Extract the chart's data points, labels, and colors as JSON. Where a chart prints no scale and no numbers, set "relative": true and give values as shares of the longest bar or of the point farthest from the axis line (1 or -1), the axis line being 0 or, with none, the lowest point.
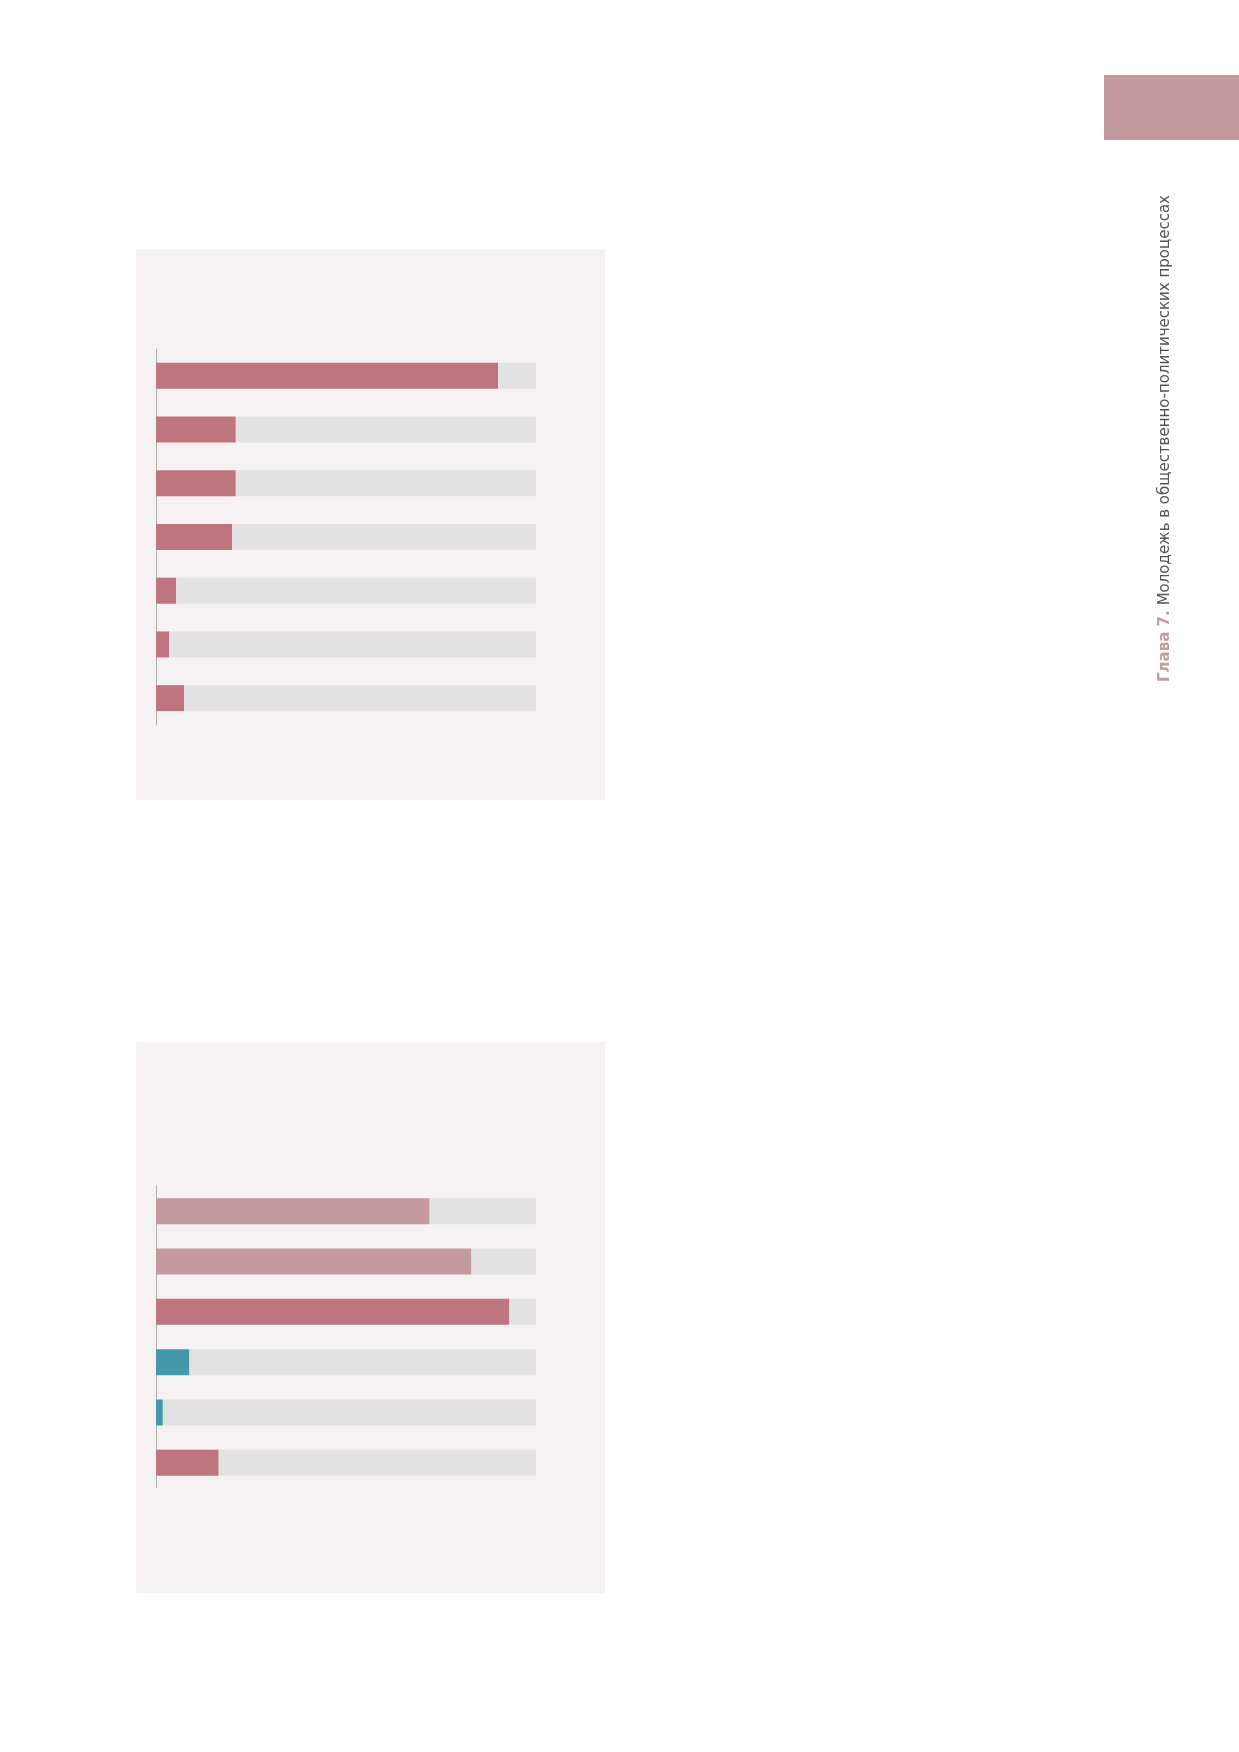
{
  "chart_data": [
    {
      "type": "bar",
      "orientation": "horizontal",
      "stacked": true,
      "relative": true,
      "categories": [
        null,
        null,
        null,
        null,
        null,
        null,
        null
      ],
      "series": [
        {
          "color": "#be7580",
          "values": [
            0.9,
            0.21,
            0.21,
            0.2,
            0.053,
            0.035,
            0.074
          ]
        },
        {
          "color": "#e3e2e2",
          "values": [
            0.1,
            0.79,
            0.79,
            0.8,
            0.947,
            0.965,
            0.926
          ]
        }
      ],
      "annotations": [
        "Глава 7.",
        "Молодежь в общественно-политических процессах"
      ]
    },
    {
      "type": "bar",
      "orientation": "horizontal",
      "stacked": true,
      "relative": true,
      "categories": [
        null,
        null,
        null,
        null,
        null,
        null
      ],
      "series": [
        {
          "colors": [
            "#c4999f",
            "#c4999f",
            "#be7580",
            "#4399aa",
            "#4399aa",
            "#be7580"
          ],
          "values": [
            0.72,
            0.83,
            0.93,
            0.088,
            0.018,
            0.165
          ]
        },
        {
          "color": "#e3e2e2",
          "values": [
            0.28,
            0.17,
            0.07,
            0.912,
            0.982,
            0.835
          ]
        }
      ]
    }
  ]
}
